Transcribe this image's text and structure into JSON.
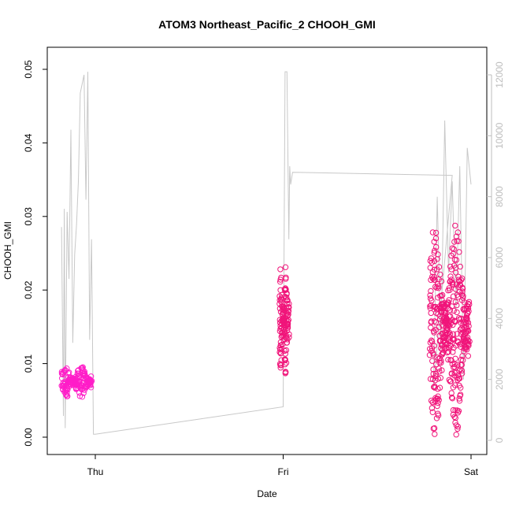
{
  "chart_data": {
    "type": "scatter",
    "title": "ATOM3 Northeast_Pacific_2 CHOOH_GMI",
    "xlabel": "Date",
    "ylabel": "CHOOH_GMI",
    "x_ticks": [
      "Thu",
      "Fri",
      "Sat"
    ],
    "x_range_days": [
      -0.2,
      2.0
    ],
    "y_ticks": [
      "0.00",
      "0.01",
      "0.02",
      "0.03",
      "0.04",
      "0.05"
    ],
    "ylim": [
      0.0,
      0.052
    ],
    "y2_ticks": [
      "0",
      "2000",
      "4000",
      "6000",
      "8000",
      "10000",
      "12000"
    ],
    "y2lim": [
      -200,
      12600
    ],
    "grid": false,
    "colors": {
      "points_a": "#ff1dc8",
      "points_b": "#f0157a",
      "altitude_line": "#c8c8c8",
      "right_axis": "#bdbdbd"
    },
    "point_segments": [
      {
        "x_start": -0.18,
        "x_end": -0.02,
        "y_center": 0.0075,
        "y_spread": 0.0022,
        "n": 160,
        "color": "#ff1dc8"
      },
      {
        "x_start": 0.98,
        "x_end": 1.03,
        "y_center": 0.016,
        "y_spread": 0.0075,
        "n": 140,
        "color": "#f0157a"
      },
      {
        "x_start": 1.78,
        "x_end": 1.99,
        "y_center": 0.015,
        "y_spread": 0.015,
        "n": 420,
        "color": "#f0157a"
      }
    ],
    "altitude_series": {
      "name": "",
      "x": [
        -0.18,
        -0.17,
        -0.165,
        -0.16,
        -0.15,
        -0.14,
        -0.13,
        -0.12,
        -0.11,
        -0.1,
        -0.09,
        -0.08,
        -0.07,
        -0.06,
        -0.05,
        -0.04,
        -0.03,
        -0.02,
        -0.01,
        0.0,
        1.0,
        1.01,
        1.02,
        1.03,
        1.035,
        1.04,
        1.05,
        1.9,
        1.8,
        1.82,
        1.84,
        1.86,
        1.88,
        1.9,
        1.92,
        1.94,
        1.96,
        1.98,
        2.0
      ],
      "y": [
        7000,
        800,
        7600,
        400,
        7500,
        5300,
        10200,
        3200,
        6100,
        7100,
        8500,
        11400,
        11700,
        12000,
        7900,
        12100,
        3300,
        6600,
        200,
        200,
        1100,
        12100,
        12100,
        6600,
        9000,
        8400,
        8800,
        8700,
        1700,
        8000,
        3000,
        10500,
        5500,
        8500,
        4200,
        9000,
        2000,
        9600,
        8400
      ]
    }
  }
}
